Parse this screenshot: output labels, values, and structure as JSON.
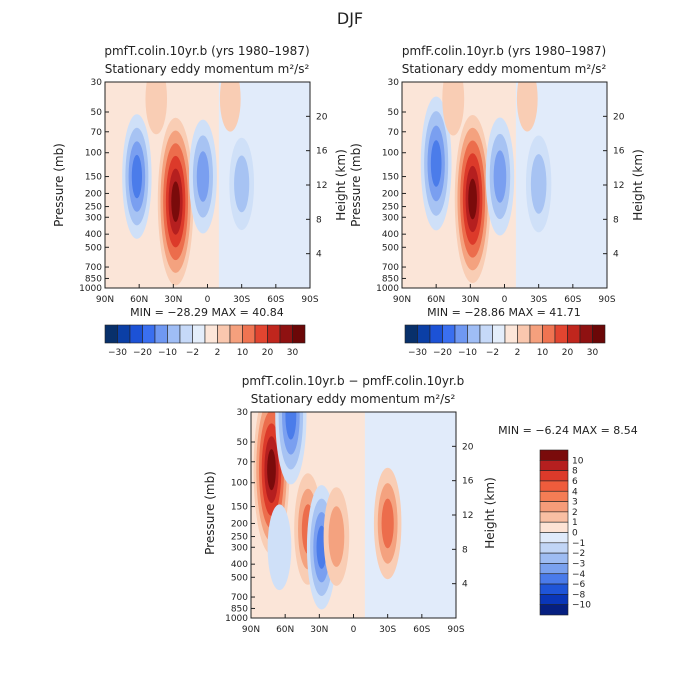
{
  "page_title": "DJF",
  "chart_data": [
    {
      "type": "heatmap",
      "title": "pmfT.colin.10yr.b (yrs 1980–1987)",
      "subtitle": "Stationary eddy momentum  m²/s²",
      "xlabel": "",
      "ylabel": "Pressure (mb)",
      "y2label": "Height (km)",
      "x_ticks": [
        "90N",
        "60N",
        "30N",
        "0",
        "30S",
        "60S",
        "90S"
      ],
      "x_values": [
        90,
        60,
        30,
        0,
        -30,
        -60,
        -90
      ],
      "xlim": [
        90,
        -90
      ],
      "y_ticks": [
        "30",
        "50",
        "70",
        "100",
        "150",
        "200",
        "250",
        "300",
        "400",
        "500",
        "700",
        "850",
        "1000"
      ],
      "y_values": [
        30,
        50,
        70,
        100,
        150,
        200,
        250,
        300,
        400,
        500,
        700,
        850,
        1000
      ],
      "ylim": [
        1000,
        30
      ],
      "y_scale": "log",
      "y2_ticks": [
        "4",
        "8",
        "12",
        "16",
        "20"
      ],
      "y2_values": [
        4,
        8,
        12,
        16,
        20
      ],
      "min_label": "MIN = −28.29   MAX = 40.84",
      "min": -28.29,
      "max": 40.84,
      "features": [
        {
          "lat": 62,
          "p": 150,
          "value": -24
        },
        {
          "lat": 28,
          "p": 230,
          "value": 40
        },
        {
          "lat": 4,
          "p": 150,
          "value": -20
        },
        {
          "lat": -30,
          "p": 170,
          "value": -12
        },
        {
          "lat": 45,
          "p": 40,
          "value": 4
        },
        {
          "lat": -20,
          "p": 40,
          "value": 2
        }
      ]
    },
    {
      "type": "heatmap",
      "title": "pmfF.colin.10yr.b (yrs 1980–1987)",
      "subtitle": "Stationary eddy momentum  m²/s²",
      "xlabel": "",
      "ylabel": "Pressure (mb)",
      "y2label": "Height (km)",
      "x_ticks": [
        "90N",
        "60N",
        "30N",
        "0",
        "30S",
        "60S",
        "90S"
      ],
      "x_values": [
        90,
        60,
        30,
        0,
        -30,
        -60,
        -90
      ],
      "xlim": [
        90,
        -90
      ],
      "y_ticks": [
        "30",
        "50",
        "70",
        "100",
        "150",
        "200",
        "250",
        "300",
        "400",
        "500",
        "700",
        "850",
        "1000"
      ],
      "y_values": [
        30,
        50,
        70,
        100,
        150,
        200,
        250,
        300,
        400,
        500,
        700,
        850,
        1000
      ],
      "ylim": [
        1000,
        30
      ],
      "y_scale": "log",
      "y2_ticks": [
        "4",
        "8",
        "12",
        "16",
        "20"
      ],
      "y2_values": [
        4,
        8,
        12,
        16,
        20
      ],
      "min_label": "MIN = −28.86   MAX = 41.71",
      "min": -28.86,
      "max": 41.71,
      "features": [
        {
          "lat": 60,
          "p": 120,
          "value": -28
        },
        {
          "lat": 28,
          "p": 220,
          "value": 41
        },
        {
          "lat": 4,
          "p": 150,
          "value": -22
        },
        {
          "lat": -30,
          "p": 170,
          "value": -14
        },
        {
          "lat": 45,
          "p": 40,
          "value": 5
        },
        {
          "lat": -20,
          "p": 40,
          "value": 2
        }
      ]
    },
    {
      "type": "heatmap",
      "title": "pmfT.colin.10yr.b − pmfF.colin.10yr.b",
      "subtitle": "Stationary eddy momentum  m²/s²",
      "xlabel": "",
      "ylabel": "Pressure (mb)",
      "y2label": "Height (km)",
      "x_ticks": [
        "90N",
        "60N",
        "30N",
        "0",
        "30S",
        "60S",
        "90S"
      ],
      "x_values": [
        90,
        60,
        30,
        0,
        -30,
        -60,
        -90
      ],
      "xlim": [
        90,
        -90
      ],
      "y_ticks": [
        "30",
        "50",
        "70",
        "100",
        "150",
        "200",
        "250",
        "300",
        "400",
        "500",
        "700",
        "850",
        "1000"
      ],
      "y_values": [
        30,
        50,
        70,
        100,
        150,
        200,
        250,
        300,
        400,
        500,
        700,
        850,
        1000
      ],
      "ylim": [
        1000,
        30
      ],
      "y_scale": "log",
      "y2_ticks": [
        "4",
        "8",
        "12",
        "16",
        "20"
      ],
      "y2_values": [
        4,
        8,
        12,
        16,
        20
      ],
      "min_label": "MIN =    −6.24    MAX =      8.54",
      "min": -6.24,
      "max": 8.54,
      "features": [
        {
          "lat": 72,
          "p": 80,
          "value": 8.5
        },
        {
          "lat": 55,
          "p": 32,
          "value": -6
        },
        {
          "lat": 40,
          "p": 220,
          "value": 4
        },
        {
          "lat": 28,
          "p": 300,
          "value": -5
        },
        {
          "lat": 15,
          "p": 250,
          "value": 3
        },
        {
          "lat": -30,
          "p": 200,
          "value": 4
        },
        {
          "lat": 65,
          "p": 300,
          "value": -2
        }
      ]
    }
  ],
  "colorbar_top": {
    "labels": [
      "−30",
      "−20",
      "−10",
      "−2",
      "2",
      "10",
      "20",
      "30"
    ],
    "colors": [
      "#08306b",
      "#0b3fa6",
      "#1c52d6",
      "#3a6ff0",
      "#6f98f2",
      "#9fbdf5",
      "#c6d9f8",
      "#e4eefb",
      "#fce6d9",
      "#f9c7ae",
      "#f5a07d",
      "#ef7452",
      "#e24530",
      "#c0261d",
      "#8f1111",
      "#6b0707"
    ]
  },
  "colorbar_side": {
    "labels": [
      "10",
      "8",
      "6",
      "4",
      "3",
      "2",
      "1",
      "0",
      "−1",
      "−2",
      "−3",
      "−4",
      "−6",
      "−8",
      "−10"
    ],
    "colors": [
      "#7a0b0b",
      "#b51f1f",
      "#dc3a2a",
      "#ef5c3c",
      "#f47d55",
      "#f69c79",
      "#f9bfa3",
      "#fde3d5",
      "#dfeafb",
      "#c1d5f6",
      "#9ebcf2",
      "#7aa1ee",
      "#4a7bea",
      "#1f55d8",
      "#0a36b8",
      "#061f80"
    ]
  }
}
